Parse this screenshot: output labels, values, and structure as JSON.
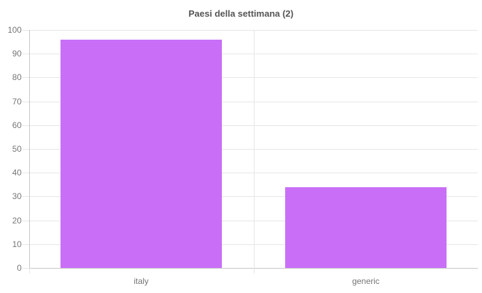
{
  "chart_data": {
    "type": "bar",
    "title": "Paesi della settimana (2)",
    "categories": [
      "italy",
      "generic"
    ],
    "values": [
      96,
      34
    ],
    "xlabel": "",
    "ylabel": "",
    "ylim": [
      0,
      100
    ],
    "ytick_step": 10,
    "ytick_labels": [
      "0",
      "10",
      "20",
      "30",
      "40",
      "50",
      "60",
      "70",
      "80",
      "90",
      "100"
    ],
    "grid": true,
    "legend_position": "none",
    "colors": {
      "bar_fill": "#c96ff7",
      "grid_line": "#e6e6e6",
      "axis_zero_line": "#c6c6c6",
      "tick_label": "#757575",
      "title": "#555555",
      "background": "#ffffff"
    }
  }
}
